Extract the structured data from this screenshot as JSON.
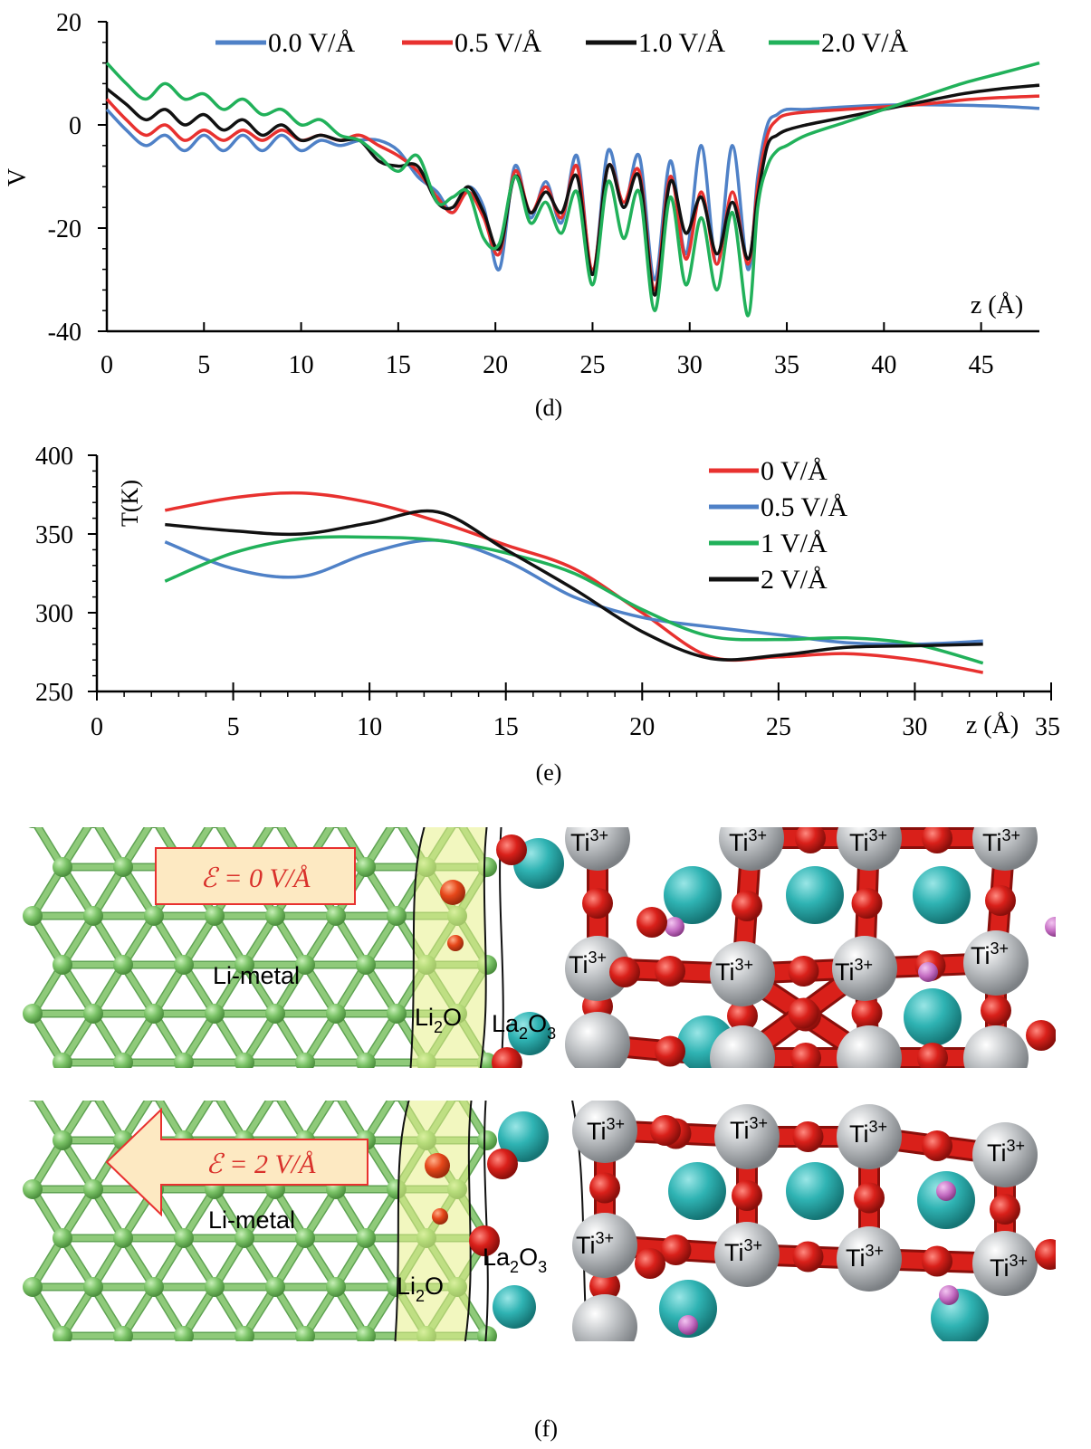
{
  "colors": {
    "blue": "#4f81c7",
    "red": "#e8312f",
    "black": "#111111",
    "green": "#21b15a",
    "li_metal": "#8fca7a",
    "li_metal_dark": "#5fa353",
    "oxygen": "#d9201a",
    "titanium": "#b9bcbf",
    "lanthanum": "#2fb3b3",
    "li2o_region": "#e8f08a",
    "lithium_ion": "#c46cc2",
    "field_box_fill": "#fde9c2",
    "field_box_text": "#d9312b"
  },
  "panel_d": {
    "caption": "(d)",
    "y_axis_label": "V",
    "x_axis_label": "z (Å)",
    "x_ticks": [
      "0",
      "5",
      "10",
      "15",
      "20",
      "25",
      "30",
      "35",
      "40",
      "45"
    ],
    "y_ticks": [
      "20",
      "0",
      "-20",
      "-40"
    ]
  },
  "panel_e": {
    "caption": "(e)",
    "y_axis_label": "T(K)",
    "x_axis_label": "z (Å)",
    "x_ticks": [
      "0",
      "5",
      "10",
      "15",
      "20",
      "25",
      "30",
      "35"
    ],
    "y_ticks": [
      "400",
      "350",
      "300",
      "250"
    ]
  },
  "panel_f": {
    "caption": "(f)",
    "top": {
      "field_label": "ℰ = 0 V/Å",
      "li_metal": "Li-metal",
      "li2o_base": "Li",
      "li2o_sub": "2",
      "li2o_tail": "O",
      "la2o3_a": "La",
      "la2o3_sub1": "2",
      "la2o3_b": "O",
      "la2o3_sub2": "3",
      "ti_base": "Ti",
      "ti_sup": "3+"
    },
    "bottom": {
      "field_label": "ℰ = 2 V/Å",
      "li_metal": "Li-metal",
      "li2o_base": "Li",
      "li2o_sub": "2",
      "li2o_tail": "O",
      "la2o3_a": "La",
      "la2o3_sub1": "2",
      "la2o3_b": "O",
      "la2o3_sub2": "3",
      "ti_base": "Ti",
      "ti_sup": "3+"
    }
  },
  "chart_data": [
    {
      "type": "line",
      "xlabel": "z (Å)",
      "ylabel": "V",
      "xlim": [
        0,
        48
      ],
      "ylim": [
        -40,
        20
      ],
      "legend_position": "top",
      "series": [
        {
          "name": "0.0 V/Å",
          "color": "#4f81c7",
          "x": [
            0,
            1,
            2,
            3,
            4,
            5,
            6,
            7,
            8,
            9,
            10,
            11,
            12,
            13,
            14,
            15,
            16,
            17,
            17.8,
            18.6,
            19.4,
            20.2,
            21,
            21.8,
            22.6,
            23.4,
            24.2,
            25,
            25.8,
            26.6,
            27.4,
            28.2,
            29,
            29.8,
            30.6,
            31.4,
            32.2,
            33,
            33.5,
            34,
            34.5,
            35,
            36,
            38,
            40,
            42,
            44,
            46,
            48
          ],
          "y": [
            3,
            -1,
            -4,
            -2,
            -5,
            -2,
            -5,
            -2,
            -5,
            -2,
            -5,
            -3,
            -4,
            -3,
            -3,
            -5,
            -10,
            -13,
            -17,
            -12,
            -16,
            -28,
            -8,
            -18,
            -11,
            -19,
            -6,
            -29,
            -5,
            -16,
            -6,
            -30,
            -7,
            -25,
            -4,
            -27,
            -4,
            -28,
            -10,
            0,
            2,
            3,
            3,
            3.5,
            3.8,
            3.9,
            3.8,
            3.6,
            3.2
          ]
        },
        {
          "name": "0.5 V/Å",
          "color": "#e8312f",
          "x": [
            0,
            1,
            2,
            3,
            4,
            5,
            6,
            7,
            8,
            9,
            10,
            11,
            12,
            13,
            14,
            15,
            16,
            17,
            17.8,
            18.6,
            19.4,
            20.2,
            21,
            21.8,
            22.6,
            23.4,
            24.2,
            25,
            25.8,
            26.6,
            27.4,
            28.2,
            29,
            29.8,
            30.6,
            31.4,
            32.2,
            33,
            33.5,
            34,
            34.5,
            35,
            36,
            38,
            40,
            42,
            44,
            46,
            48
          ],
          "y": [
            5,
            1,
            -2,
            0,
            -3,
            -1,
            -3,
            -1,
            -3,
            -1,
            -3,
            -2,
            -3,
            -2,
            -4,
            -6,
            -9,
            -14,
            -17,
            -13,
            -18,
            -25,
            -9,
            -17,
            -12,
            -18,
            -8,
            -28,
            -8,
            -15,
            -9,
            -32,
            -10,
            -26,
            -13,
            -27,
            -13,
            -27,
            -12,
            -2,
            1,
            2,
            2.5,
            3,
            3.5,
            4,
            4.8,
            5.3,
            5.6
          ]
        },
        {
          "name": "1.0 V/Å",
          "color": "#111111",
          "x": [
            0,
            1,
            2,
            3,
            4,
            5,
            6,
            7,
            8,
            9,
            10,
            11,
            12,
            13,
            14,
            15,
            16,
            17,
            17.8,
            18.6,
            19.4,
            20.2,
            21,
            21.8,
            22.6,
            23.4,
            24.2,
            25,
            25.8,
            26.6,
            27.4,
            28.2,
            29,
            29.8,
            30.6,
            31.4,
            32.2,
            33,
            33.5,
            34,
            34.5,
            35,
            36,
            38,
            40,
            42,
            44,
            46,
            48
          ],
          "y": [
            7,
            4,
            1,
            3,
            0,
            2,
            -1,
            1,
            -2,
            0,
            -3,
            -2,
            -3,
            -3,
            -7,
            -8,
            -8,
            -15,
            -16,
            -12,
            -17,
            -24,
            -10,
            -17,
            -13,
            -17,
            -10,
            -29,
            -8,
            -16,
            -10,
            -33,
            -11,
            -21,
            -14,
            -25,
            -15,
            -26,
            -14,
            -4,
            -2,
            -1,
            0,
            1.5,
            3,
            4.5,
            6,
            7,
            7.7
          ]
        },
        {
          "name": "2.0 V/Å",
          "color": "#21b15a",
          "x": [
            0,
            1,
            2,
            3,
            4,
            5,
            6,
            7,
            8,
            9,
            10,
            11,
            12,
            13,
            14,
            15,
            16,
            17,
            17.8,
            18.6,
            19.4,
            20.2,
            21,
            21.8,
            22.6,
            23.4,
            24.2,
            25,
            25.8,
            26.6,
            27.4,
            28.2,
            29,
            29.8,
            30.6,
            31.4,
            32.2,
            33,
            33.5,
            34,
            34.5,
            35,
            36,
            38,
            40,
            42,
            44,
            46,
            48
          ],
          "y": [
            12,
            8,
            5,
            8,
            5,
            6,
            3,
            5,
            2,
            3,
            0,
            1,
            -2,
            -3,
            -6,
            -9,
            -6,
            -15,
            -14,
            -13,
            -22,
            -23,
            -10,
            -19,
            -15,
            -21,
            -13,
            -31,
            -11,
            -22,
            -13,
            -36,
            -14,
            -31,
            -18,
            -32,
            -17,
            -37,
            -16,
            -8,
            -5,
            -4,
            -2,
            0.5,
            3,
            5.5,
            8,
            10,
            12
          ]
        }
      ]
    },
    {
      "type": "line",
      "xlabel": "z (Å)",
      "ylabel": "T(K)",
      "xlim": [
        0,
        35
      ],
      "ylim": [
        250,
        400
      ],
      "legend_position": "top-right",
      "series": [
        {
          "name": "0 V/Å",
          "color": "#e8312f",
          "x": [
            2.5,
            5,
            7.5,
            10,
            12.5,
            15,
            17.5,
            20,
            22.5,
            25,
            27.5,
            30,
            32.5
          ],
          "y": [
            365,
            373,
            376,
            370,
            358,
            343,
            328,
            300,
            272,
            272,
            274,
            270,
            262
          ]
        },
        {
          "name": "0.5 V/Å",
          "color": "#4f81c7",
          "x": [
            2.5,
            5,
            7.5,
            10,
            12.5,
            15,
            17.5,
            20,
            22.5,
            25,
            27.5,
            30,
            32.5
          ],
          "y": [
            345,
            328,
            323,
            338,
            346,
            333,
            310,
            297,
            291,
            286,
            281,
            280,
            282
          ]
        },
        {
          "name": "1 V/Å",
          "color": "#21b15a",
          "x": [
            2.5,
            5,
            7.5,
            10,
            12.5,
            15,
            17.5,
            20,
            22.5,
            25,
            27.5,
            30,
            32.5
          ],
          "y": [
            320,
            338,
            347,
            348,
            346,
            338,
            325,
            302,
            285,
            283,
            284,
            280,
            268
          ]
        },
        {
          "name": "2 V/Å",
          "color": "#111111",
          "x": [
            2.5,
            5,
            7.5,
            10,
            12.5,
            15,
            17.5,
            20,
            22.5,
            25,
            27.5,
            30,
            32.5
          ],
          "y": [
            356,
            352,
            350,
            357,
            364,
            340,
            315,
            288,
            271,
            273,
            278,
            279,
            280
          ]
        }
      ]
    }
  ]
}
